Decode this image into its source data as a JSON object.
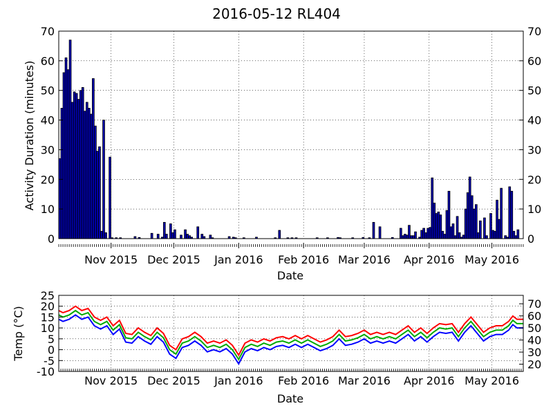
{
  "title": "2016-05-12 RL404",
  "chart_data": [
    {
      "type": "bar",
      "xlabel": "Date",
      "ylabel": "Activity Duration (minutes)",
      "x_range": [
        "2015-10-07",
        "2016-05-16"
      ],
      "ylim": [
        0,
        70
      ],
      "y_ticks": [
        0,
        10,
        20,
        30,
        40,
        50,
        60,
        70
      ],
      "right_y_ticks": [
        0,
        10,
        20,
        30,
        40,
        50,
        60,
        70
      ],
      "x_ticks": [
        {
          "date": "2015-11-01",
          "label": "Nov 2015"
        },
        {
          "date": "2015-12-01",
          "label": "Dec 2015"
        },
        {
          "date": "2016-01-01",
          "label": "Jan 2016"
        },
        {
          "date": "2016-02-01",
          "label": "Feb 2016"
        },
        {
          "date": "2016-03-01",
          "label": "Mar 2016"
        },
        {
          "date": "2016-04-01",
          "label": "Apr 2016"
        },
        {
          "date": "2016-05-01",
          "label": "May 2016"
        }
      ],
      "grid": true,
      "bar_color": "#0000b0",
      "bars": [
        {
          "date": "2015-10-07",
          "value": 27
        },
        {
          "date": "2015-10-08",
          "value": 44
        },
        {
          "date": "2015-10-09",
          "value": 56
        },
        {
          "date": "2015-10-10",
          "value": 61
        },
        {
          "date": "2015-10-11",
          "value": 57
        },
        {
          "date": "2015-10-12",
          "value": 67
        },
        {
          "date": "2015-10-13",
          "value": 46
        },
        {
          "date": "2015-10-14",
          "value": 49.5
        },
        {
          "date": "2015-10-15",
          "value": 49
        },
        {
          "date": "2015-10-16",
          "value": 47
        },
        {
          "date": "2015-10-17",
          "value": 50
        },
        {
          "date": "2015-10-18",
          "value": 51
        },
        {
          "date": "2015-10-19",
          "value": 43
        },
        {
          "date": "2015-10-20",
          "value": 46
        },
        {
          "date": "2015-10-21",
          "value": 44
        },
        {
          "date": "2015-10-22",
          "value": 42
        },
        {
          "date": "2015-10-23",
          "value": 54
        },
        {
          "date": "2015-10-24",
          "value": 38
        },
        {
          "date": "2015-10-25",
          "value": 29.5
        },
        {
          "date": "2015-10-26",
          "value": 31
        },
        {
          "date": "2015-10-27",
          "value": 2.5
        },
        {
          "date": "2015-10-28",
          "value": 40
        },
        {
          "date": "2015-10-29",
          "value": 2
        },
        {
          "date": "2015-10-31",
          "value": 27.5
        },
        {
          "date": "2015-11-01",
          "value": 0.3
        },
        {
          "date": "2015-11-03",
          "value": 0.3
        },
        {
          "date": "2015-11-05",
          "value": 0.3
        },
        {
          "date": "2015-11-12",
          "value": 0.7
        },
        {
          "date": "2015-11-14",
          "value": 0.4
        },
        {
          "date": "2015-11-20",
          "value": 1.8
        },
        {
          "date": "2015-11-23",
          "value": 1.5
        },
        {
          "date": "2015-11-25",
          "value": 0.5
        },
        {
          "date": "2015-11-26",
          "value": 5.5
        },
        {
          "date": "2015-11-27",
          "value": 1.5
        },
        {
          "date": "2015-11-29",
          "value": 5
        },
        {
          "date": "2015-11-30",
          "value": 2
        },
        {
          "date": "2015-12-01",
          "value": 3
        },
        {
          "date": "2015-12-04",
          "value": 1.2
        },
        {
          "date": "2015-12-06",
          "value": 3
        },
        {
          "date": "2015-12-07",
          "value": 1.5
        },
        {
          "date": "2015-12-08",
          "value": 1
        },
        {
          "date": "2015-12-09",
          "value": 0.5
        },
        {
          "date": "2015-12-12",
          "value": 4
        },
        {
          "date": "2015-12-14",
          "value": 1.5
        },
        {
          "date": "2015-12-15",
          "value": 0.7
        },
        {
          "date": "2015-12-18",
          "value": 1.2
        },
        {
          "date": "2015-12-19",
          "value": 0.3
        },
        {
          "date": "2015-12-27",
          "value": 0.7
        },
        {
          "date": "2015-12-29",
          "value": 0.5
        },
        {
          "date": "2015-12-30",
          "value": 0.3
        },
        {
          "date": "2016-01-03",
          "value": 0.3
        },
        {
          "date": "2016-01-09",
          "value": 0.5
        },
        {
          "date": "2016-01-18",
          "value": 0.3
        },
        {
          "date": "2016-01-20",
          "value": 2.8
        },
        {
          "date": "2016-01-24",
          "value": 0.3
        },
        {
          "date": "2016-01-26",
          "value": 0.3
        },
        {
          "date": "2016-01-28",
          "value": 0.3
        },
        {
          "date": "2016-02-07",
          "value": 0.3
        },
        {
          "date": "2016-02-12",
          "value": 0.3
        },
        {
          "date": "2016-02-17",
          "value": 0.4
        },
        {
          "date": "2016-02-18",
          "value": 0.3
        },
        {
          "date": "2016-02-24",
          "value": 0.3
        },
        {
          "date": "2016-02-29",
          "value": 0.4
        },
        {
          "date": "2016-03-03",
          "value": 0.3
        },
        {
          "date": "2016-03-05",
          "value": 5.5
        },
        {
          "date": "2016-03-08",
          "value": 4
        },
        {
          "date": "2016-03-14",
          "value": 0.4
        },
        {
          "date": "2016-03-18",
          "value": 3.5
        },
        {
          "date": "2016-03-19",
          "value": 1
        },
        {
          "date": "2016-03-20",
          "value": 1.5
        },
        {
          "date": "2016-03-21",
          "value": 1.2
        },
        {
          "date": "2016-03-22",
          "value": 4.5
        },
        {
          "date": "2016-03-23",
          "value": 1
        },
        {
          "date": "2016-03-24",
          "value": 1
        },
        {
          "date": "2016-03-25",
          "value": 2.3
        },
        {
          "date": "2016-03-27",
          "value": 0.5
        },
        {
          "date": "2016-03-28",
          "value": 2.8
        },
        {
          "date": "2016-03-29",
          "value": 3.5
        },
        {
          "date": "2016-03-30",
          "value": 2
        },
        {
          "date": "2016-03-31",
          "value": 3.5
        },
        {
          "date": "2016-04-01",
          "value": 3.8
        },
        {
          "date": "2016-04-02",
          "value": 20.5
        },
        {
          "date": "2016-04-03",
          "value": 12
        },
        {
          "date": "2016-04-04",
          "value": 8.5
        },
        {
          "date": "2016-04-05",
          "value": 9
        },
        {
          "date": "2016-04-06",
          "value": 8
        },
        {
          "date": "2016-04-07",
          "value": 2.5
        },
        {
          "date": "2016-04-08",
          "value": 1.5
        },
        {
          "date": "2016-04-09",
          "value": 9.5
        },
        {
          "date": "2016-04-10",
          "value": 16
        },
        {
          "date": "2016-04-11",
          "value": 4
        },
        {
          "date": "2016-04-12",
          "value": 5
        },
        {
          "date": "2016-04-13",
          "value": 1
        },
        {
          "date": "2016-04-14",
          "value": 7.5
        },
        {
          "date": "2016-04-15",
          "value": 2
        },
        {
          "date": "2016-04-16",
          "value": 0.5
        },
        {
          "date": "2016-04-17",
          "value": 1.2
        },
        {
          "date": "2016-04-18",
          "value": 10
        },
        {
          "date": "2016-04-19",
          "value": 15.5
        },
        {
          "date": "2016-04-20",
          "value": 20.8
        },
        {
          "date": "2016-04-21",
          "value": 14.5
        },
        {
          "date": "2016-04-22",
          "value": 10
        },
        {
          "date": "2016-04-23",
          "value": 11.5
        },
        {
          "date": "2016-04-24",
          "value": 2
        },
        {
          "date": "2016-04-25",
          "value": 6
        },
        {
          "date": "2016-04-27",
          "value": 7
        },
        {
          "date": "2016-04-28",
          "value": 1
        },
        {
          "date": "2016-04-30",
          "value": 8.5
        },
        {
          "date": "2016-05-01",
          "value": 2.8
        },
        {
          "date": "2016-05-02",
          "value": 2.5
        },
        {
          "date": "2016-05-03",
          "value": 13
        },
        {
          "date": "2016-05-04",
          "value": 6.5
        },
        {
          "date": "2016-05-05",
          "value": 17
        },
        {
          "date": "2016-05-07",
          "value": 1
        },
        {
          "date": "2016-05-08",
          "value": 0.5
        },
        {
          "date": "2016-05-09",
          "value": 17.5
        },
        {
          "date": "2016-05-10",
          "value": 16
        },
        {
          "date": "2016-05-11",
          "value": 2.5
        },
        {
          "date": "2016-05-12",
          "value": 1
        },
        {
          "date": "2016-05-13",
          "value": 3
        }
      ]
    },
    {
      "type": "line",
      "xlabel": "Date",
      "ylabel": "Temp ($^\\circ$C)",
      "x_range": [
        "2015-10-07",
        "2016-05-16"
      ],
      "ylim": [
        -10,
        25
      ],
      "y_ticks": [
        -10,
        -5,
        0,
        5,
        10,
        15,
        20,
        25
      ],
      "right_ylim_approx": [
        14,
        77
      ],
      "right_y_ticks": [
        20,
        30,
        40,
        50,
        60,
        70
      ],
      "x_ticks": [
        {
          "date": "2015-11-01",
          "label": "Nov 2015"
        },
        {
          "date": "2015-12-01",
          "label": "Dec 2015"
        },
        {
          "date": "2016-01-01",
          "label": "Jan 2016"
        },
        {
          "date": "2016-02-01",
          "label": "Feb 2016"
        },
        {
          "date": "2016-03-01",
          "label": "Mar 2016"
        },
        {
          "date": "2016-04-01",
          "label": "Apr 2016"
        },
        {
          "date": "2016-05-01",
          "label": "May 2016"
        }
      ],
      "grid": true,
      "series_colors": [
        "#0000ff",
        "#00aa00",
        "#ff0000"
      ],
      "baseline": [
        {
          "date": "2015-10-07",
          "value": 14
        },
        {
          "date": "2015-10-09",
          "value": 13
        },
        {
          "date": "2015-10-12",
          "value": 14
        },
        {
          "date": "2015-10-15",
          "value": 16
        },
        {
          "date": "2015-10-18",
          "value": 14
        },
        {
          "date": "2015-10-21",
          "value": 15
        },
        {
          "date": "2015-10-24",
          "value": 11
        },
        {
          "date": "2015-10-27",
          "value": 9.5
        },
        {
          "date": "2015-10-30",
          "value": 11
        },
        {
          "date": "2015-11-02",
          "value": 7
        },
        {
          "date": "2015-11-05",
          "value": 9.5
        },
        {
          "date": "2015-11-08",
          "value": 3.5
        },
        {
          "date": "2015-11-11",
          "value": 3
        },
        {
          "date": "2015-11-14",
          "value": 6
        },
        {
          "date": "2015-11-17",
          "value": 4
        },
        {
          "date": "2015-11-20",
          "value": 2.5
        },
        {
          "date": "2015-11-23",
          "value": 6
        },
        {
          "date": "2015-11-26",
          "value": 3.5
        },
        {
          "date": "2015-11-29",
          "value": -2
        },
        {
          "date": "2015-12-02",
          "value": -4
        },
        {
          "date": "2015-12-05",
          "value": 1
        },
        {
          "date": "2015-12-08",
          "value": 2
        },
        {
          "date": "2015-12-11",
          "value": 4
        },
        {
          "date": "2015-12-14",
          "value": 2
        },
        {
          "date": "2015-12-17",
          "value": -1
        },
        {
          "date": "2015-12-20",
          "value": 0
        },
        {
          "date": "2015-12-23",
          "value": -1
        },
        {
          "date": "2015-12-26",
          "value": 0.5
        },
        {
          "date": "2015-12-29",
          "value": -2
        },
        {
          "date": "2016-01-01",
          "value": -6.5
        },
        {
          "date": "2016-01-04",
          "value": -1
        },
        {
          "date": "2016-01-07",
          "value": 0.5
        },
        {
          "date": "2016-01-10",
          "value": -0.5
        },
        {
          "date": "2016-01-13",
          "value": 1
        },
        {
          "date": "2016-01-16",
          "value": 0
        },
        {
          "date": "2016-01-19",
          "value": 1.5
        },
        {
          "date": "2016-01-22",
          "value": 2
        },
        {
          "date": "2016-01-25",
          "value": 1
        },
        {
          "date": "2016-01-28",
          "value": 2.5
        },
        {
          "date": "2016-01-31",
          "value": 1
        },
        {
          "date": "2016-02-03",
          "value": 2.5
        },
        {
          "date": "2016-02-06",
          "value": 1
        },
        {
          "date": "2016-02-09",
          "value": -0.5
        },
        {
          "date": "2016-02-12",
          "value": 0.5
        },
        {
          "date": "2016-02-15",
          "value": 2
        },
        {
          "date": "2016-02-18",
          "value": 5
        },
        {
          "date": "2016-02-21",
          "value": 2
        },
        {
          "date": "2016-02-24",
          "value": 2.5
        },
        {
          "date": "2016-02-27",
          "value": 3.5
        },
        {
          "date": "2016-03-01",
          "value": 5
        },
        {
          "date": "2016-03-04",
          "value": 3
        },
        {
          "date": "2016-03-07",
          "value": 4
        },
        {
          "date": "2016-03-10",
          "value": 3
        },
        {
          "date": "2016-03-13",
          "value": 4
        },
        {
          "date": "2016-03-16",
          "value": 3
        },
        {
          "date": "2016-03-19",
          "value": 5
        },
        {
          "date": "2016-03-22",
          "value": 7
        },
        {
          "date": "2016-03-25",
          "value": 4
        },
        {
          "date": "2016-03-28",
          "value": 6
        },
        {
          "date": "2016-03-31",
          "value": 3.5
        },
        {
          "date": "2016-04-03",
          "value": 6
        },
        {
          "date": "2016-04-06",
          "value": 8
        },
        {
          "date": "2016-04-09",
          "value": 7.5
        },
        {
          "date": "2016-04-12",
          "value": 8
        },
        {
          "date": "2016-04-15",
          "value": 4
        },
        {
          "date": "2016-04-18",
          "value": 8
        },
        {
          "date": "2016-04-21",
          "value": 11
        },
        {
          "date": "2016-04-24",
          "value": 7.5
        },
        {
          "date": "2016-04-27",
          "value": 4
        },
        {
          "date": "2016-04-30",
          "value": 6
        },
        {
          "date": "2016-05-03",
          "value": 7
        },
        {
          "date": "2016-05-06",
          "value": 7
        },
        {
          "date": "2016-05-09",
          "value": 9
        },
        {
          "date": "2016-05-11",
          "value": 11.5
        },
        {
          "date": "2016-05-13",
          "value": 10
        },
        {
          "date": "2016-05-16",
          "value": 10
        }
      ],
      "series_offsets": [
        0,
        2,
        4
      ]
    }
  ]
}
